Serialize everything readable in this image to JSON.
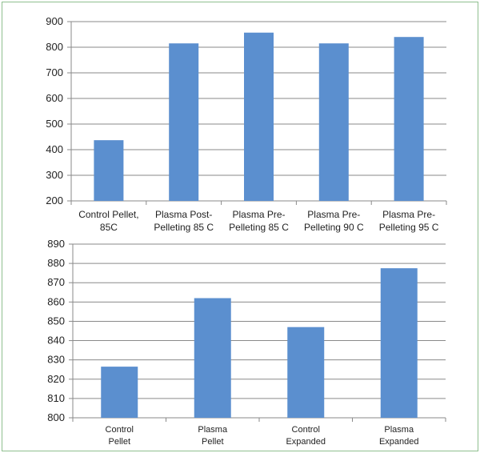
{
  "chart_data": [
    {
      "type": "bar",
      "categories": [
        [
          "Control Pellet,",
          "85C"
        ],
        [
          "Plasma Post-",
          "Pelleting 85 C"
        ],
        [
          "Plasma Pre-",
          "Pelleting 85 C"
        ],
        [
          "Plasma Pre-",
          "Pelleting 90 C"
        ],
        [
          "Plasma Pre-",
          "Pelleting 95 C"
        ]
      ],
      "values": [
        437,
        815,
        857,
        815,
        840
      ],
      "ylim": [
        200,
        900
      ],
      "yticks": [
        200,
        300,
        400,
        500,
        600,
        700,
        800,
        900
      ],
      "grid": true,
      "bar_color": "#5b8fcf"
    },
    {
      "type": "bar",
      "categories": [
        [
          "Control",
          "Pellet"
        ],
        [
          "Plasma",
          "Pellet"
        ],
        [
          "Control",
          "Expanded"
        ],
        [
          "Plasma",
          "Expanded"
        ]
      ],
      "values": [
        826.5,
        862,
        847,
        877.5
      ],
      "ylim": [
        800,
        890
      ],
      "yticks": [
        800,
        810,
        820,
        830,
        840,
        850,
        860,
        870,
        880,
        890
      ],
      "grid": true,
      "bar_color": "#5b8fcf"
    }
  ]
}
